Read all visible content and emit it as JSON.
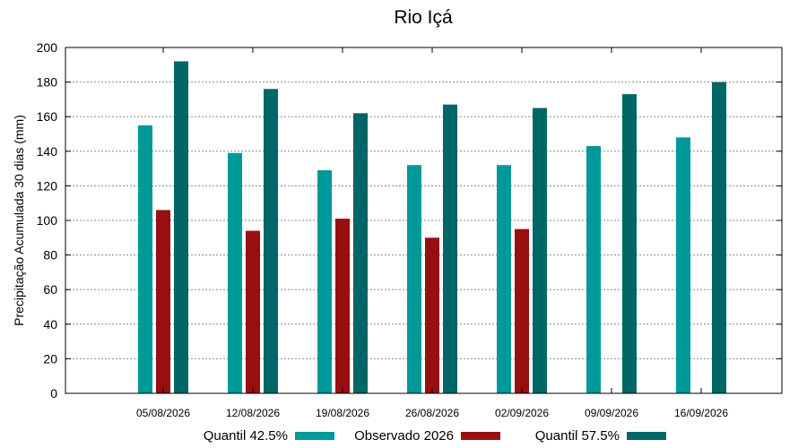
{
  "chart_data": {
    "type": "bar",
    "title": "Rio Içá",
    "xlabel": "",
    "ylabel": "Precipitação Acumulada 30 dias (mm)",
    "ylim": [
      0,
      200
    ],
    "yticks": [
      0,
      20,
      40,
      60,
      80,
      100,
      120,
      140,
      160,
      180,
      200
    ],
    "grid": true,
    "legend_position": "bottom",
    "categories": [
      "05/08/2026",
      "12/08/2026",
      "19/08/2026",
      "26/08/2026",
      "02/09/2026",
      "09/09/2026",
      "16/09/2026"
    ],
    "series": [
      {
        "name": "Quantil 42.5%",
        "color": "#009999",
        "values": [
          155,
          139,
          129,
          132,
          132,
          143,
          148
        ]
      },
      {
        "name": "Observado 2026",
        "color": "#990f0f",
        "values": [
          106,
          94,
          101,
          90,
          95,
          null,
          null
        ]
      },
      {
        "name": "Quantil 57.5%",
        "color": "#006666",
        "values": [
          192,
          176,
          162,
          167,
          165,
          173,
          180
        ]
      }
    ]
  }
}
